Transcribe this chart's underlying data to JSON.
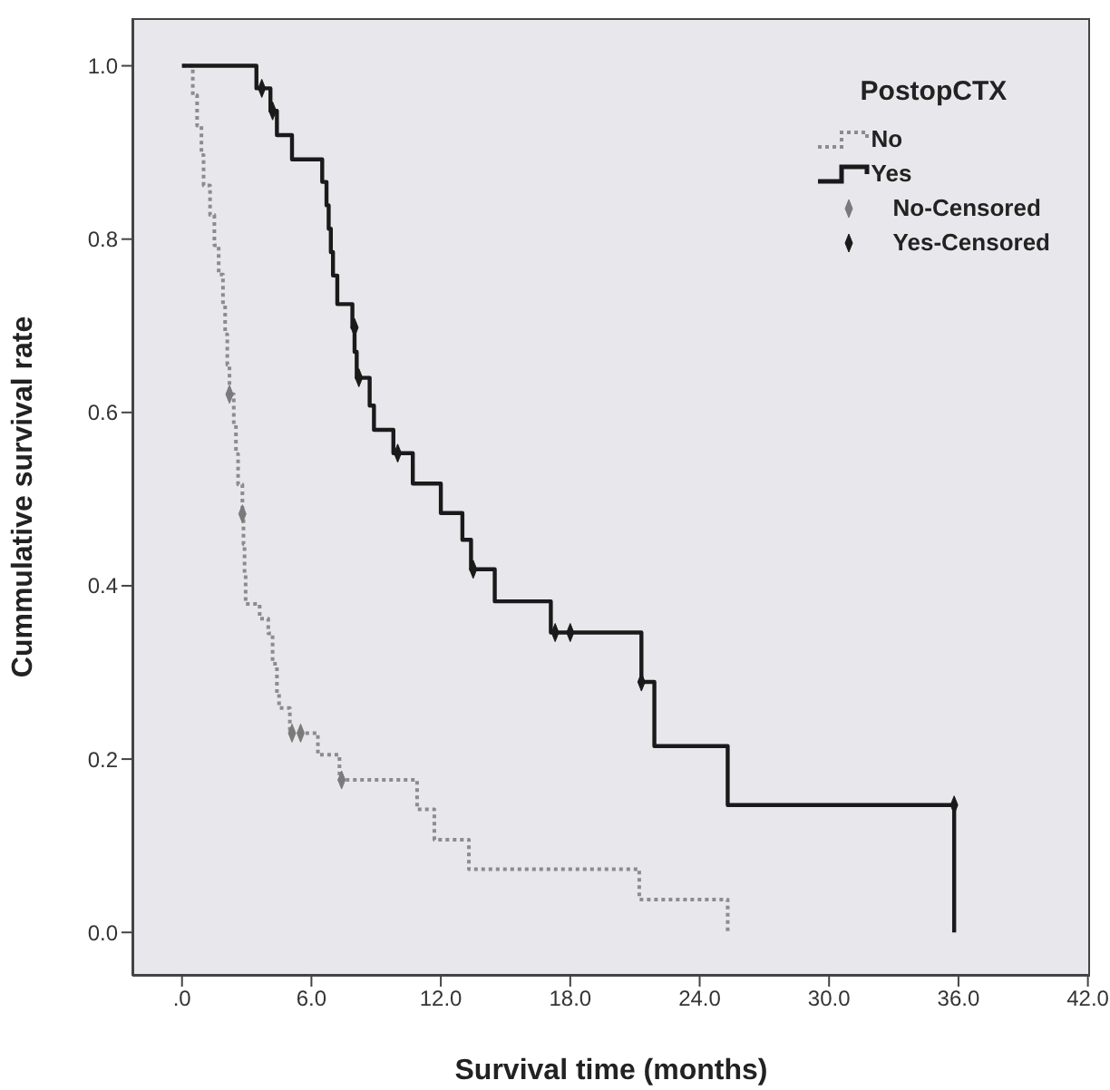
{
  "chart_data": {
    "type": "step",
    "xlabel": "Survival time (months)",
    "ylabel": "Cummulative survival rate",
    "legend_title": "PostopCTX",
    "legend": "top right",
    "xlim": [
      -2.3,
      42.1
    ],
    "xticks": [
      {
        "value": 0,
        "label": ".0"
      },
      {
        "value": 6,
        "label": "6.0"
      },
      {
        "value": 12,
        "label": "12.0"
      },
      {
        "value": 18,
        "label": "18.0"
      },
      {
        "value": 24,
        "label": "24.0"
      },
      {
        "value": 30,
        "label": "30.0"
      },
      {
        "value": 36,
        "label": "36.0"
      },
      {
        "value": 42,
        "label": "42.0"
      }
    ],
    "ylim": [
      -0.05,
      1.055
    ],
    "yticks": [
      {
        "value": 0,
        "label": "0.0"
      },
      0.2,
      0.4,
      0.6,
      0.8,
      {
        "value": 1,
        "label": "1.0"
      }
    ],
    "series": [
      {
        "name": "No",
        "color": "#8c8c8c",
        "line_style": "dotted",
        "marker": "none",
        "x": [
          0,
          0.5,
          0.7,
          0.9,
          1.0,
          1.3,
          1.5,
          1.7,
          1.9,
          2.0,
          2.1,
          2.2,
          2.4,
          2.5,
          2.6,
          2.8,
          2.85,
          2.9,
          2.95,
          3.6,
          4.0,
          4.2,
          4.4,
          4.5,
          5.0,
          6.3,
          7.3,
          10.9,
          11.7,
          13.3,
          21.2,
          25.3
        ],
        "values": [
          1,
          0.966,
          0.931,
          0.897,
          0.862,
          0.828,
          0.793,
          0.759,
          0.724,
          0.69,
          0.655,
          0.621,
          0.586,
          0.552,
          0.517,
          0.483,
          0.448,
          0.414,
          0.379,
          0.362,
          0.345,
          0.31,
          0.276,
          0.259,
          0.23,
          0.205,
          0.176,
          0.142,
          0.107,
          0.073,
          0.038,
          0
        ]
      },
      {
        "name": "Yes",
        "color": "#1a1a1a",
        "line_style": "solid",
        "marker": "none",
        "x": [
          0,
          3.45,
          4.1,
          4.4,
          5.1,
          6.5,
          6.7,
          6.8,
          6.9,
          7.0,
          7.2,
          7.9,
          8.0,
          8.1,
          8.7,
          8.9,
          9.8,
          10.7,
          12.0,
          13.0,
          13.4,
          14.5,
          17.1,
          21.3,
          21.9,
          25.3,
          35.8
        ],
        "values": [
          1,
          0.974,
          0.948,
          0.92,
          0.892,
          0.866,
          0.839,
          0.812,
          0.785,
          0.758,
          0.725,
          0.698,
          0.67,
          0.64,
          0.608,
          0.58,
          0.553,
          0.518,
          0.484,
          0.453,
          0.419,
          0.382,
          0.346,
          0.289,
          0.215,
          0.147,
          0
        ]
      },
      {
        "name": "No-Censored",
        "type": "scatter",
        "color": "#7a7a7a",
        "marker": "diamond",
        "x": [
          2.2,
          2.8,
          5.1,
          5.5,
          7.4
        ],
        "values": [
          0.621,
          0.483,
          0.23,
          0.23,
          0.176
        ]
      },
      {
        "name": "Yes-Censored",
        "type": "scatter",
        "color": "#1a1a1a",
        "marker": "diamond",
        "x": [
          3.7,
          4.2,
          8.0,
          8.2,
          10.0,
          13.5,
          17.3,
          18.0,
          21.3,
          35.8
        ],
        "values": [
          0.974,
          0.948,
          0.698,
          0.64,
          0.553,
          0.419,
          0.346,
          0.346,
          0.289,
          0.147
        ]
      }
    ]
  }
}
